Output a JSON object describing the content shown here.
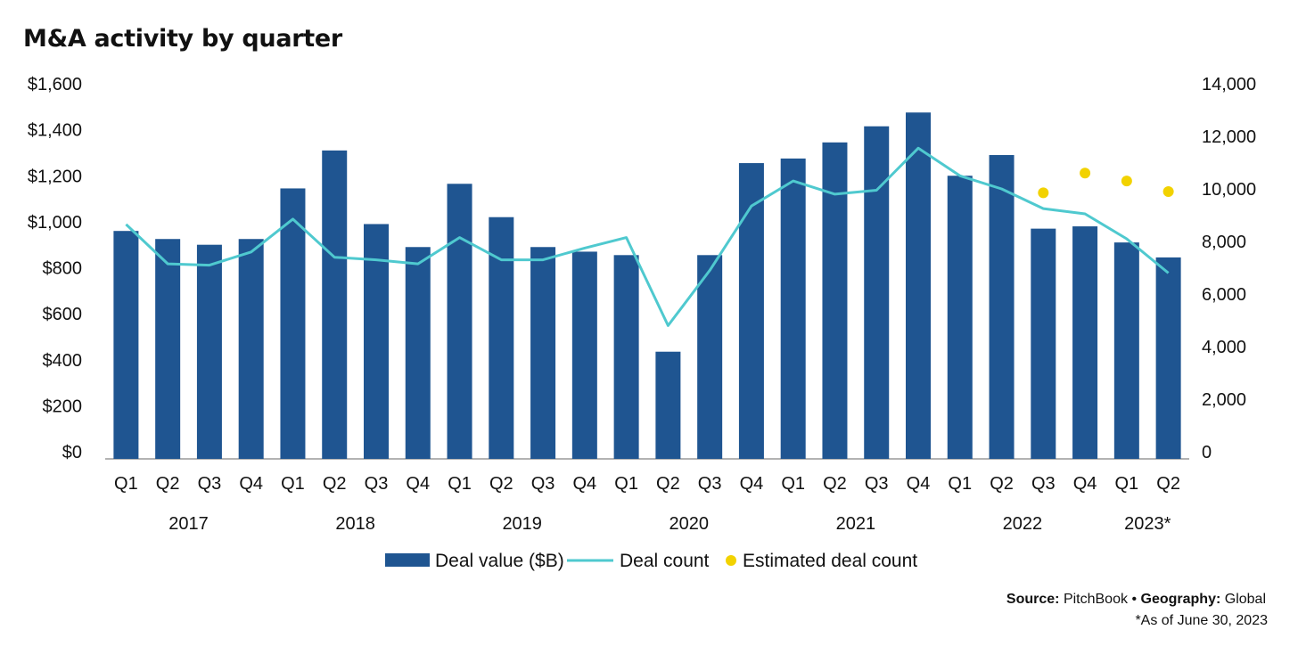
{
  "title": "M&A activity by quarter",
  "source": {
    "source_label": "Source:",
    "source_value": "PitchBook",
    "separator": "•",
    "geo_label": "Geography:",
    "geo_value": "Global",
    "note": "*As of June 30, 2023"
  },
  "colors": {
    "bar": "#1f5591",
    "line": "#4fc9cf",
    "estimate": "#f2d200"
  },
  "chart_data": {
    "type": "bar",
    "title": "M&A activity by quarter",
    "categories": [
      "Q1",
      "Q2",
      "Q3",
      "Q4",
      "Q1",
      "Q2",
      "Q3",
      "Q4",
      "Q1",
      "Q2",
      "Q3",
      "Q4",
      "Q1",
      "Q2",
      "Q3",
      "Q4",
      "Q1",
      "Q2",
      "Q3",
      "Q4",
      "Q1",
      "Q2",
      "Q3",
      "Q4",
      "Q1",
      "Q2"
    ],
    "year_labels": [
      {
        "label": "2017",
        "start": 0,
        "end": 3
      },
      {
        "label": "2018",
        "start": 4,
        "end": 7
      },
      {
        "label": "2019",
        "start": 8,
        "end": 11
      },
      {
        "label": "2020",
        "start": 12,
        "end": 15
      },
      {
        "label": "2021",
        "start": 16,
        "end": 19
      },
      {
        "label": "2022",
        "start": 20,
        "end": 23
      },
      {
        "label": "2023*",
        "start": 24,
        "end": 25
      }
    ],
    "series": [
      {
        "name": "Deal value ($B)",
        "kind": "bar",
        "axis": "left",
        "values": [
          960,
          925,
          900,
          925,
          1145,
          1310,
          990,
          890,
          1165,
          1020,
          890,
          870,
          855,
          435,
          855,
          1255,
          1275,
          1345,
          1415,
          1475,
          1200,
          1290,
          970,
          980,
          910,
          845
        ]
      },
      {
        "name": "Deal count",
        "kind": "line",
        "axis": "right",
        "values": [
          8650,
          7150,
          7100,
          7600,
          8850,
          7400,
          7300,
          7150,
          8150,
          7300,
          7300,
          7750,
          8150,
          4800,
          6900,
          9350,
          10300,
          9800,
          9950,
          11550,
          10500,
          10000,
          9250,
          9050,
          8100,
          6800
        ]
      },
      {
        "name": "Estimated deal count",
        "kind": "scatter",
        "axis": "right",
        "points": [
          {
            "index": 22,
            "value": 9850
          },
          {
            "index": 23,
            "value": 10600
          },
          {
            "index": 24,
            "value": 10300
          },
          {
            "index": 25,
            "value": 9900
          }
        ]
      }
    ],
    "y_left": {
      "ylim": [
        0,
        1600
      ],
      "ticks": [
        "$0",
        "$200",
        "$400",
        "$600",
        "$800",
        "$1,000",
        "$1,200",
        "$1,400",
        "$1,600"
      ],
      "tick_values": [
        0,
        200,
        400,
        600,
        800,
        1000,
        1200,
        1400,
        1600
      ]
    },
    "y_right": {
      "ylim": [
        0,
        14000
      ],
      "ticks": [
        "0",
        "2,000",
        "4,000",
        "6,000",
        "8,000",
        "10,000",
        "12,000",
        "14,000"
      ],
      "tick_values": [
        0,
        2000,
        4000,
        6000,
        8000,
        10000,
        12000,
        14000
      ]
    },
    "grid": false,
    "legend_placement": "bottom-center"
  }
}
